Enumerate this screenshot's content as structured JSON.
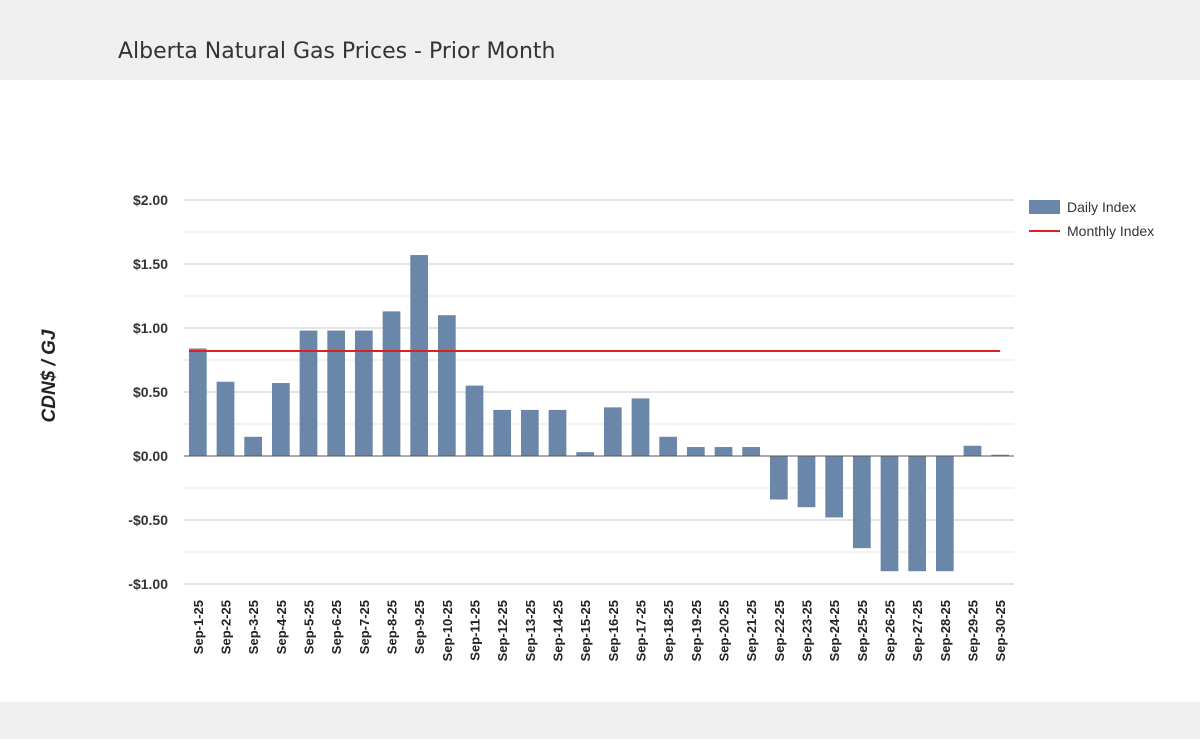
{
  "header": {
    "title": "Alberta Natural Gas Prices - Prior Month"
  },
  "colors": {
    "bar": "#6a86a8",
    "monthly_line": "#e02020",
    "grid_major": "#c8c8c8",
    "grid_minor": "#e4e4e4",
    "zero_line": "#555555",
    "header_bg": "#efefef"
  },
  "chart_data": {
    "type": "bar",
    "title": "",
    "xlabel": "",
    "ylabel": "CDN$ / GJ",
    "ylim": [
      -1.0,
      2.0
    ],
    "yticks": [
      2.0,
      1.5,
      1.0,
      0.5,
      0.0,
      -0.5,
      -1.0
    ],
    "ytick_labels": [
      "$2.00",
      "$1.50",
      "$1.00",
      "$0.50",
      "$0.00",
      "-$0.50",
      "-$1.00"
    ],
    "grid": true,
    "legend_position": "top-right",
    "categories": [
      "Sep-1-25",
      "Sep-2-25",
      "Sep-3-25",
      "Sep-4-25",
      "Sep-5-25",
      "Sep-6-25",
      "Sep-7-25",
      "Sep-8-25",
      "Sep-9-25",
      "Sep-10-25",
      "Sep-11-25",
      "Sep-12-25",
      "Sep-13-25",
      "Sep-14-25",
      "Sep-15-25",
      "Sep-16-25",
      "Sep-17-25",
      "Sep-18-25",
      "Sep-19-25",
      "Sep-20-25",
      "Sep-21-25",
      "Sep-22-25",
      "Sep-23-25",
      "Sep-24-25",
      "Sep-25-25",
      "Sep-26-25",
      "Sep-27-25",
      "Sep-28-25",
      "Sep-29-25",
      "Sep-30-25"
    ],
    "series": [
      {
        "name": "Daily Index",
        "kind": "bar",
        "values": [
          0.84,
          0.58,
          0.15,
          0.57,
          0.98,
          0.98,
          0.98,
          1.13,
          1.57,
          1.1,
          0.55,
          0.36,
          0.36,
          0.36,
          0.03,
          0.38,
          0.45,
          0.15,
          0.07,
          0.07,
          0.07,
          -0.34,
          -0.4,
          -0.48,
          -0.72,
          -0.9,
          -0.9,
          -0.9,
          0.08,
          0.01
        ]
      },
      {
        "name": "Monthly Index",
        "kind": "line",
        "value": 0.82
      }
    ]
  }
}
